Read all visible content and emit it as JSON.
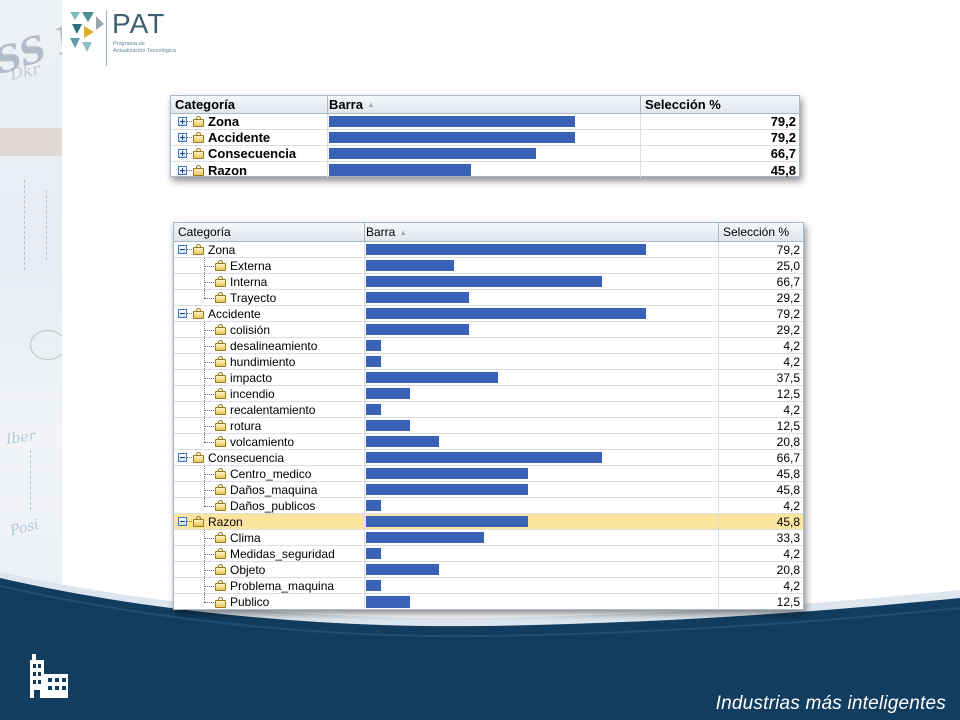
{
  "logo": {
    "title": "PAT",
    "subtitle_line1": "Programa de",
    "subtitle_line2": "Actualización Tecnológica"
  },
  "slogan": "Industrias más inteligentes",
  "colors": {
    "bar": "#3a63b8",
    "selected_row": "#fbe59f",
    "bottom_band": "#123d5e"
  },
  "summary_table": {
    "headers": {
      "category": "Categoría",
      "bar": "Barra",
      "selection": "Selección %"
    },
    "rows": [
      {
        "label": "Zona",
        "value": "79,2",
        "percent": 79.2
      },
      {
        "label": "Accidente",
        "value": "79,2",
        "percent": 79.2
      },
      {
        "label": "Consecuencia",
        "value": "66,7",
        "percent": 66.7
      },
      {
        "label": "Razon",
        "value": "45,8",
        "percent": 45.8
      }
    ]
  },
  "detail_table": {
    "headers": {
      "category": "Categoría",
      "bar": "Barra",
      "selection": "Selección %"
    },
    "rows": [
      {
        "label": "Zona",
        "value": "79,2",
        "percent": 79.2,
        "level": 0
      },
      {
        "label": "Externa",
        "value": "25,0",
        "percent": 25.0,
        "level": 1
      },
      {
        "label": "Interna",
        "value": "66,7",
        "percent": 66.7,
        "level": 1
      },
      {
        "label": "Trayecto",
        "value": "29,2",
        "percent": 29.2,
        "level": 1,
        "last": true
      },
      {
        "label": "Accidente",
        "value": "79,2",
        "percent": 79.2,
        "level": 0
      },
      {
        "label": "colisión",
        "value": "29,2",
        "percent": 29.2,
        "level": 1
      },
      {
        "label": "desalineamiento",
        "value": "4,2",
        "percent": 4.2,
        "level": 1
      },
      {
        "label": "hundimiento",
        "value": "4,2",
        "percent": 4.2,
        "level": 1
      },
      {
        "label": "impacto",
        "value": "37,5",
        "percent": 37.5,
        "level": 1
      },
      {
        "label": "incendio",
        "value": "12,5",
        "percent": 12.5,
        "level": 1
      },
      {
        "label": "recalentamiento",
        "value": "4,2",
        "percent": 4.2,
        "level": 1
      },
      {
        "label": "rotura",
        "value": "12,5",
        "percent": 12.5,
        "level": 1
      },
      {
        "label": "volcamiento",
        "value": "20,8",
        "percent": 20.8,
        "level": 1,
        "last": true
      },
      {
        "label": "Consecuencia",
        "value": "66,7",
        "percent": 66.7,
        "level": 0
      },
      {
        "label": "Centro_medico",
        "value": "45,8",
        "percent": 45.8,
        "level": 1
      },
      {
        "label": "Daños_maquina",
        "value": "45,8",
        "percent": 45.8,
        "level": 1
      },
      {
        "label": "Daños_publicos",
        "value": "4,2",
        "percent": 4.2,
        "level": 1,
        "last": true
      },
      {
        "label": "Razon",
        "value": "45,8",
        "percent": 45.8,
        "level": 0,
        "selected": true
      },
      {
        "label": "Clima",
        "value": "33,3",
        "percent": 33.3,
        "level": 1
      },
      {
        "label": "Medidas_seguridad",
        "value": "4,2",
        "percent": 4.2,
        "level": 1
      },
      {
        "label": "Objeto",
        "value": "20,8",
        "percent": 20.8,
        "level": 1
      },
      {
        "label": "Problema_maquina",
        "value": "4,2",
        "percent": 4.2,
        "level": 1
      },
      {
        "label": "Publico",
        "value": "12,5",
        "percent": 12.5,
        "level": 1,
        "last": true
      }
    ]
  }
}
